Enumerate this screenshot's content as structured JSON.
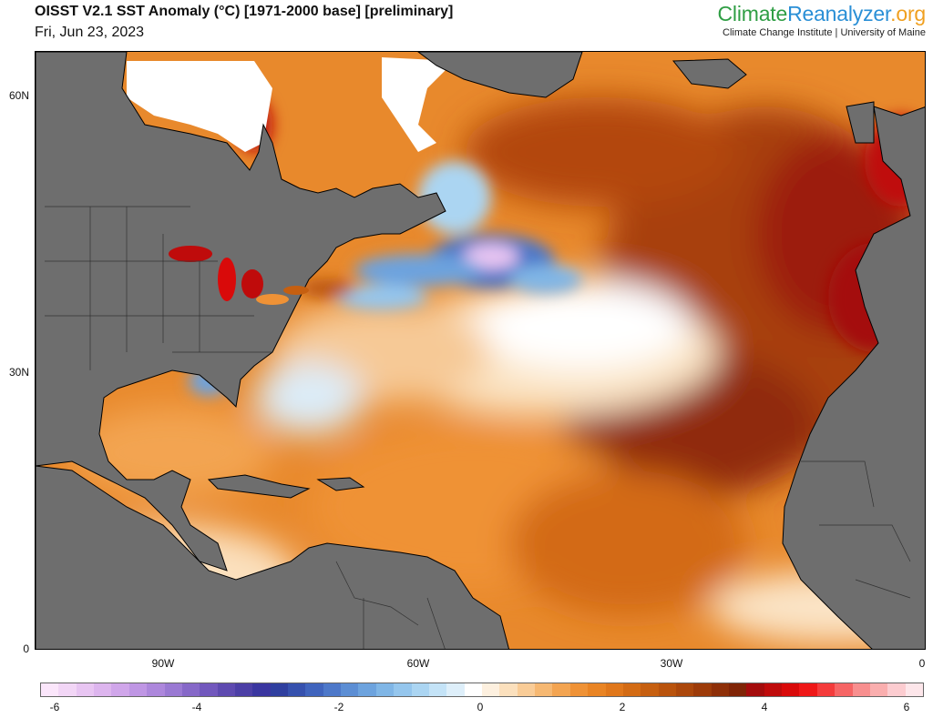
{
  "header": {
    "title": "OISST V2.1 SST Anomaly (°C) [1971-2000 base] [preliminary]",
    "date": "Fri, Jun 23, 2023"
  },
  "brand": {
    "logo_part1": "Climate",
    "logo_part2": "Reanalyzer",
    "logo_part3": ".org",
    "subtitle": "Climate Change Institute | University of Maine"
  },
  "map": {
    "land_color": "#6e6e6e",
    "ocean_base_color": "#e8892c",
    "lat_labels": [
      "60N",
      "30N",
      "0"
    ],
    "lon_labels": [
      "90W",
      "60W",
      "30W",
      "0"
    ]
  },
  "colorbar": {
    "labels": [
      "-6",
      "-4",
      "-2",
      "0",
      "2",
      "4",
      "6"
    ],
    "colors": [
      "#fbe6fb",
      "#f2d6f6",
      "#e8c5f2",
      "#ddb5ee",
      "#d0a6ea",
      "#bf96e4",
      "#ad87dc",
      "#9a79d3",
      "#8668c8",
      "#7258bd",
      "#5e4ab0",
      "#4c3fa6",
      "#3a36a0",
      "#2f3f9f",
      "#3651ae",
      "#4064bd",
      "#4d78c9",
      "#5c8ed4",
      "#6da3de",
      "#80b6e6",
      "#95c6ed",
      "#abd5f2",
      "#c4e3f7",
      "#deeffa",
      "#ffffff",
      "#fdf0df",
      "#fbe0bd",
      "#f9cc97",
      "#f6b872",
      "#f3a451",
      "#ef9236",
      "#e98424",
      "#e0771b",
      "#d36b14",
      "#c65f10",
      "#b9530d",
      "#ab470b",
      "#9d3b09",
      "#8e2f08",
      "#802406",
      "#a40c0c",
      "#bf0b0b",
      "#d90a0a",
      "#ef1717",
      "#f43b3b",
      "#f66565",
      "#f88f8f",
      "#faaeae",
      "#fcccd0",
      "#fde6ea"
    ]
  }
}
